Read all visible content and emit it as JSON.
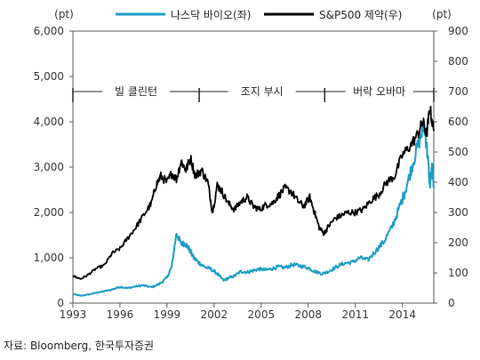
{
  "chart_data": {
    "type": "line",
    "left_unit": "(pt)",
    "right_unit": "(pt)",
    "left_axis": {
      "min": 0,
      "max": 6000,
      "ticks": [
        "0",
        "1,000",
        "2,000",
        "3,000",
        "4,000",
        "5,000",
        "6,000"
      ]
    },
    "right_axis": {
      "min": 0,
      "max": 900,
      "ticks": [
        "0",
        "100",
        "200",
        "300",
        "400",
        "500",
        "600",
        "700",
        "800",
        "900"
      ]
    },
    "x_axis": {
      "min": 1993,
      "max": 2016,
      "ticks": [
        "1993",
        "1996",
        "1999",
        "2002",
        "2005",
        "2008",
        "2011",
        "2014"
      ]
    },
    "series": [
      {
        "name": "나스닥 바이오(좌)",
        "axis": "left",
        "color": "#1b9cc4",
        "x": [
          1993.0,
          1993.5,
          1994.0,
          1994.5,
          1995.0,
          1995.5,
          1996.0,
          1996.5,
          1997.0,
          1997.5,
          1998.0,
          1998.5,
          1999.0,
          1999.3,
          1999.6,
          1999.9,
          2000.15,
          2000.4,
          2000.7,
          2001.0,
          2001.4,
          2001.8,
          2002.2,
          2002.6,
          2002.9,
          2003.3,
          2003.7,
          2004.1,
          2004.5,
          2004.9,
          2005.3,
          2005.7,
          2006.1,
          2006.5,
          2007.0,
          2007.5,
          2008.0,
          2008.4,
          2008.9,
          2009.3,
          2009.8,
          2010.3,
          2010.8,
          2011.3,
          2011.8,
          2012.3,
          2012.8,
          2013.3,
          2013.8,
          2014.2,
          2014.6,
          2015.0,
          2015.4,
          2015.6,
          2015.75,
          2015.9,
          2016.0
        ],
        "values": [
          200,
          160,
          190,
          230,
          260,
          300,
          360,
          330,
          370,
          390,
          350,
          420,
          560,
          800,
          1550,
          1300,
          1320,
          1200,
          1000,
          900,
          800,
          750,
          650,
          500,
          550,
          600,
          700,
          680,
          720,
          750,
          730,
          760,
          800,
          780,
          850,
          820,
          780,
          700,
          650,
          700,
          800,
          880,
          900,
          1000,
          950,
          1150,
          1350,
          1650,
          2100,
          2500,
          3000,
          3500,
          3900,
          3300,
          2600,
          3000,
          2600
        ]
      },
      {
        "name": "S&P500 제약(우)",
        "axis": "right",
        "color": "#000000",
        "x": [
          1993.0,
          1993.5,
          1994.0,
          1994.5,
          1995.0,
          1995.5,
          1996.0,
          1996.5,
          1997.0,
          1997.5,
          1998.0,
          1998.3,
          1998.6,
          1999.0,
          1999.3,
          1999.6,
          1999.9,
          2000.2,
          2000.5,
          2000.8,
          2001.2,
          2001.6,
          2001.9,
          2002.2,
          2002.5,
          2002.9,
          2003.3,
          2003.7,
          2004.1,
          2004.5,
          2004.9,
          2005.3,
          2005.7,
          2006.1,
          2006.5,
          2006.9,
          2007.3,
          2007.7,
          2008.1,
          2008.4,
          2008.7,
          2009.0,
          2009.3,
          2009.7,
          2010.1,
          2010.5,
          2011.0,
          2011.5,
          2012.0,
          2012.5,
          2013.0,
          2013.5,
          2014.0,
          2014.5,
          2015.0,
          2015.3,
          2015.55,
          2015.75,
          2016.0
        ],
        "values": [
          90,
          80,
          95,
          115,
          125,
          165,
          180,
          215,
          250,
          290,
          330,
          390,
          420,
          400,
          430,
          410,
          470,
          440,
          480,
          420,
          440,
          400,
          300,
          390,
          370,
          330,
          310,
          335,
          350,
          320,
          310,
          325,
          330,
          355,
          380,
          370,
          340,
          320,
          350,
          300,
          250,
          230,
          255,
          280,
          290,
          300,
          300,
          310,
          340,
          360,
          400,
          420,
          490,
          520,
          560,
          600,
          560,
          645,
          570
        ]
      }
    ],
    "eras": [
      {
        "label": "빌 클린턴",
        "start": 1993.0,
        "end": 2001.05
      },
      {
        "label": "조지 부시",
        "start": 2001.05,
        "end": 2009.05
      },
      {
        "label": "버락 오바마",
        "start": 2009.05,
        "end": 2016.0
      }
    ],
    "era_level": 700
  },
  "source_text": "자료: Bloomberg, 한국투자증권"
}
